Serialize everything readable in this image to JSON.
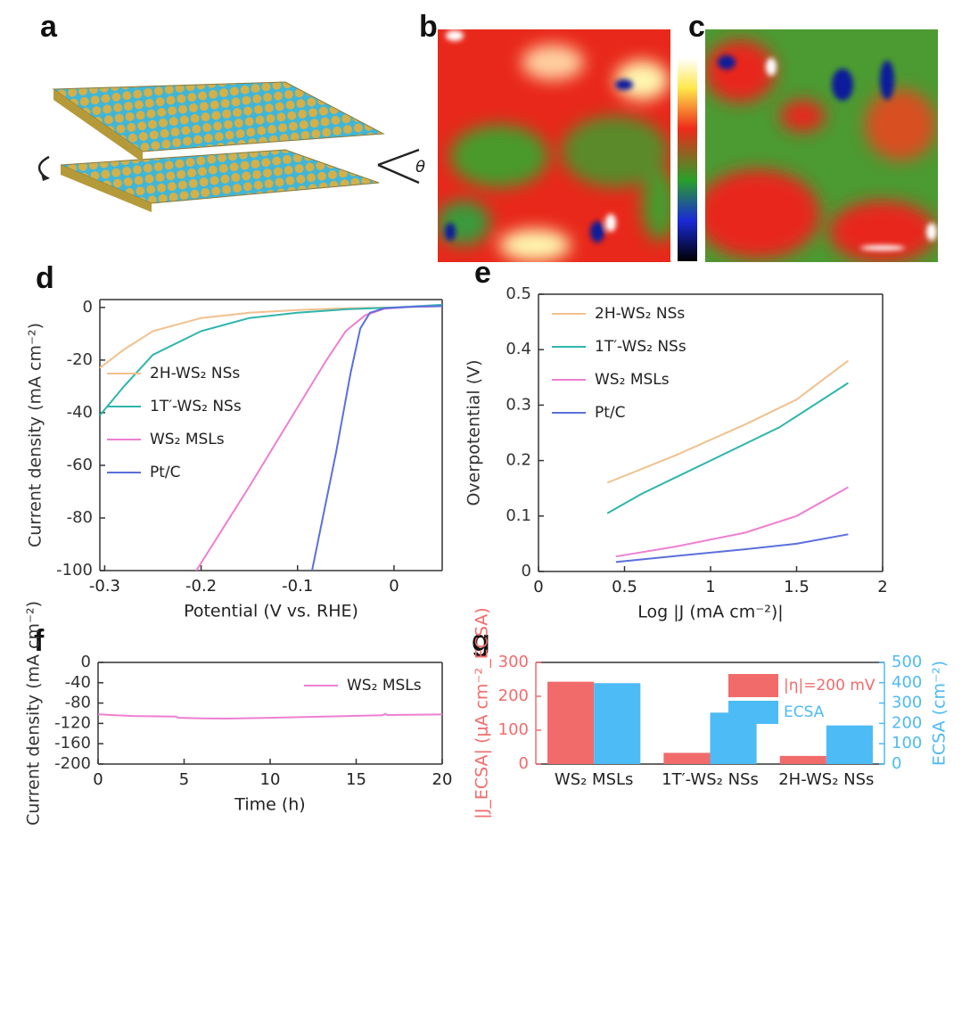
{
  "images": [
    {
      "panel": "a",
      "annotation": "θ"
    },
    {
      "panel": "b"
    },
    {
      "panel": "c"
    }
  ],
  "chart_data": [
    {
      "type": "line",
      "panel": "d",
      "xlabel": "Potential (V vs. RHE)",
      "ylabel": "Current density (mA cm⁻²)",
      "xlim": [
        -0.305,
        0.05
      ],
      "xticks": [
        -0.3,
        -0.2,
        -0.1,
        0
      ],
      "ylim": [
        -100,
        3
      ],
      "yticks": [
        0,
        -20,
        -40,
        -60,
        -80,
        -100
      ],
      "legend": "lower left",
      "series": [
        {
          "name": "2H-WS₂ NSs",
          "color": "#f2c08e",
          "x": [
            -0.305,
            -0.28,
            -0.25,
            -0.2,
            -0.15,
            -0.1,
            -0.05,
            0,
            0.05
          ],
          "values": [
            -23,
            -16,
            -9,
            -4,
            -2,
            -1,
            -0.3,
            0,
            0.5
          ]
        },
        {
          "name": "1T′-WS₂ NSs",
          "color": "#2fb5ab",
          "x": [
            -0.305,
            -0.28,
            -0.25,
            -0.2,
            -0.15,
            -0.1,
            -0.05,
            0,
            0.05
          ],
          "values": [
            -41,
            -30,
            -18,
            -9,
            -4,
            -2,
            -0.7,
            0,
            1
          ]
        },
        {
          "name": "WS₂ MSLs",
          "color": "#ee7fd2",
          "x": [
            -0.205,
            -0.15,
            -0.1,
            -0.07,
            -0.05,
            -0.03,
            -0.01,
            0.02,
            0.05
          ],
          "values": [
            -100,
            -68,
            -38,
            -20,
            -9,
            -3,
            -0.5,
            0.3,
            0.5
          ]
        },
        {
          "name": "Pt/C",
          "color": "#5b6fdc",
          "x": [
            -0.085,
            -0.06,
            -0.045,
            -0.035,
            -0.025,
            -0.01,
            0.02,
            0.05
          ],
          "values": [
            -100,
            -55,
            -25,
            -8,
            -2,
            -0.3,
            0.3,
            0.5
          ]
        }
      ]
    },
    {
      "type": "line",
      "panel": "e",
      "xlabel": "Log |J (mA cm⁻²)|",
      "ylabel": "Overpotential (V)",
      "xlim": [
        0,
        2
      ],
      "xticks": [
        0,
        0.5,
        1,
        1.5,
        2
      ],
      "ylim": [
        0,
        0.5
      ],
      "yticks": [
        0,
        0.1,
        0.2,
        0.3,
        0.4,
        0.5
      ],
      "legend": "upper left",
      "series": [
        {
          "name": "2H-WS₂ NSs",
          "color": "#f2c08e",
          "x": [
            0.4,
            0.8,
            1.2,
            1.5,
            1.8
          ],
          "values": [
            0.16,
            0.21,
            0.265,
            0.31,
            0.38
          ]
        },
        {
          "name": "1T′-WS₂ NSs",
          "color": "#2fb5ab",
          "x": [
            0.4,
            0.6,
            1.0,
            1.4,
            1.8
          ],
          "values": [
            0.105,
            0.14,
            0.2,
            0.26,
            0.34
          ]
        },
        {
          "name": "WS₂ MSLs",
          "color": "#ee7fd2",
          "x": [
            0.45,
            0.8,
            1.2,
            1.5,
            1.8
          ],
          "values": [
            0.027,
            0.045,
            0.07,
            0.1,
            0.152
          ]
        },
        {
          "name": "Pt/C",
          "color": "#5b6fdc",
          "x": [
            0.45,
            0.8,
            1.2,
            1.5,
            1.8
          ],
          "values": [
            0.017,
            0.028,
            0.04,
            0.05,
            0.067
          ]
        }
      ]
    },
    {
      "type": "line",
      "panel": "f",
      "xlabel": "Time (h)",
      "ylabel": "Current density (mA cm⁻²)",
      "xlim": [
        0,
        20
      ],
      "xticks": [
        0,
        5,
        10,
        15,
        20
      ],
      "ylim": [
        -200,
        0
      ],
      "yticks": [
        0,
        -40,
        -80,
        -120,
        -160,
        -200
      ],
      "legend": "upper right",
      "series": [
        {
          "name": "WS₂ MSLs",
          "color": "#ee7fd2",
          "x": [
            0,
            1,
            2,
            4.5,
            4.7,
            6,
            7.5,
            10,
            12,
            14,
            16.5,
            16.7,
            16.8,
            18,
            20
          ],
          "values": [
            -102,
            -104,
            -105.5,
            -106.5,
            -109,
            -110,
            -110.5,
            -109,
            -107.5,
            -106,
            -104,
            -101.5,
            -103.5,
            -103,
            -102.5
          ]
        }
      ]
    },
    {
      "type": "bar",
      "panel": "g",
      "ylabel": "|J_ECSA| (μA cm⁻²_ECSA)",
      "y2label": "ECSA (cm⁻²)",
      "categories": [
        "WS₂ MSLs",
        "1T′-WS₂ NSs",
        "2H-WS₂ NSs"
      ],
      "ylim": [
        0,
        300
      ],
      "yticks": [
        0,
        100,
        200,
        300
      ],
      "y2lim": [
        0,
        500
      ],
      "y2ticks": [
        0,
        100,
        200,
        300,
        400,
        500
      ],
      "legend": "upper right",
      "series": [
        {
          "name": "|η|=200 mV",
          "color": "#f26b6b",
          "values": [
            243,
            33,
            24
          ]
        },
        {
          "name": "ECSA",
          "color": "#4dbbf5",
          "axis": "y2",
          "values": [
            398,
            253,
            190
          ]
        }
      ]
    }
  ]
}
